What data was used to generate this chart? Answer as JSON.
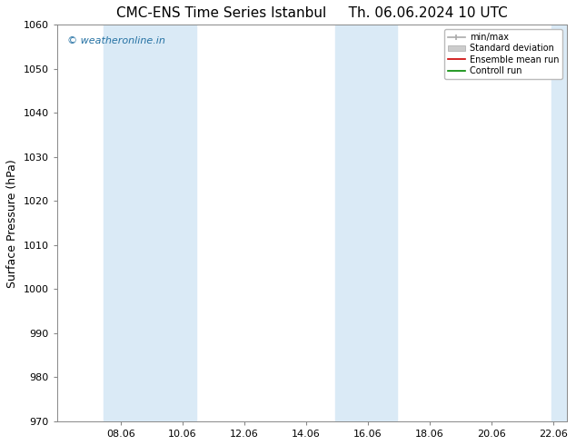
{
  "title_left": "CMC-ENS Time Series Istanbul",
  "title_right": "Th. 06.06.2024 10 UTC",
  "ylabel": "Surface Pressure (hPa)",
  "ylim": [
    970,
    1060
  ],
  "yticks": [
    970,
    980,
    990,
    1000,
    1010,
    1020,
    1030,
    1040,
    1050,
    1060
  ],
  "xlim_start": 6.0,
  "xlim_end": 22.5,
  "xticks": [
    8.06,
    10.06,
    12.06,
    14.06,
    16.06,
    18.06,
    20.06,
    22.06
  ],
  "xtick_labels": [
    "08.06",
    "10.06",
    "12.06",
    "14.06",
    "16.06",
    "18.06",
    "20.06",
    "22.06"
  ],
  "shaded_bands": [
    {
      "x_start": 7.5,
      "x_end": 10.5,
      "color": "#daeaf6"
    },
    {
      "x_start": 15.0,
      "x_end": 17.0,
      "color": "#daeaf6"
    },
    {
      "x_start": 22.0,
      "x_end": 22.5,
      "color": "#daeaf6"
    }
  ],
  "watermark_text": "© weatheronline.in",
  "watermark_color": "#2471a3",
  "legend_items": [
    {
      "label": "min/max",
      "color": "#aaaaaa",
      "style": "minmax"
    },
    {
      "label": "Standard deviation",
      "color": "#cccccc",
      "style": "stddev"
    },
    {
      "label": "Ensemble mean run",
      "color": "#cc0000",
      "style": "line"
    },
    {
      "label": "Controll run",
      "color": "#008800",
      "style": "line"
    }
  ],
  "background_color": "#ffffff",
  "plot_bg_color": "#ffffff",
  "title_fontsize": 11,
  "tick_fontsize": 8,
  "ylabel_fontsize": 9
}
